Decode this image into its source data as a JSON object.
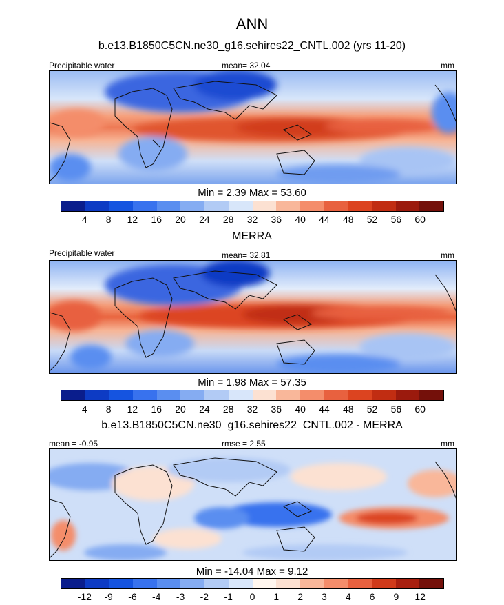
{
  "figure": {
    "title": "ANN"
  },
  "palette": {
    "seq": [
      "#0a1d8c",
      "#0d3bc4",
      "#1554e0",
      "#3872ee",
      "#5a8ef0",
      "#85acf2",
      "#b2cbf5",
      "#d8e6fa",
      "#fce1d2",
      "#f9b79a",
      "#f48d6b",
      "#e8613f",
      "#dc4420",
      "#c12d12",
      "#9b1a0d",
      "#74100a"
    ],
    "diff": [
      "#0a1d8c",
      "#0d3bc4",
      "#1554e0",
      "#3872ee",
      "#5a8ef0",
      "#85acf2",
      "#b2cbf5",
      "#d8e6fa",
      "#fff6ee",
      "#fce1d2",
      "#f9b79a",
      "#f48d6b",
      "#e8613f",
      "#d03a1a",
      "#a81f0f",
      "#74100a"
    ]
  },
  "chart_data": [
    {
      "type": "heatmap",
      "title": "b.e13.B1850C5CN.ne30_g16.sehires22_CNTL.002 (yrs 11-20)",
      "left_label": "Precipitable water",
      "center_label": "mean=  32.04",
      "units": "mm",
      "variable": "Precipitable water",
      "mean": 32.04,
      "min": 2.39,
      "max": 53.6,
      "minmax_text": "Min =   2.39 Max =  53.60",
      "colorbar_levels": [
        "4",
        "8",
        "12",
        "16",
        "20",
        "24",
        "28",
        "32",
        "36",
        "40",
        "44",
        "48",
        "52",
        "56",
        "60"
      ],
      "palette": "seq"
    },
    {
      "type": "heatmap",
      "title": "MERRA",
      "left_label": "Precipitable water",
      "center_label": "mean=  32.81",
      "units": "mm",
      "variable": "Precipitable water",
      "mean": 32.81,
      "min": 1.98,
      "max": 57.35,
      "minmax_text": "Min =   1.98 Max =  57.35",
      "colorbar_levels": [
        "4",
        "8",
        "12",
        "16",
        "20",
        "24",
        "28",
        "32",
        "36",
        "40",
        "44",
        "48",
        "52",
        "56",
        "60"
      ],
      "palette": "seq"
    },
    {
      "type": "heatmap",
      "title": "b.e13.B1850C5CN.ne30_g16.sehires22_CNTL.002 - MERRA",
      "left_label": "mean =  -0.95",
      "center_label": "rmse =   2.55",
      "units": "mm",
      "mean": -0.95,
      "rmse": 2.55,
      "min": -14.04,
      "max": 9.12,
      "minmax_text": "Min = -14.04 Max =   9.12",
      "colorbar_levels": [
        "-12",
        "-9",
        "-6",
        "-4",
        "-3",
        "-2",
        "-1",
        "0",
        "1",
        "2",
        "3",
        "4",
        "6",
        "9",
        "12"
      ],
      "palette": "diff"
    }
  ]
}
